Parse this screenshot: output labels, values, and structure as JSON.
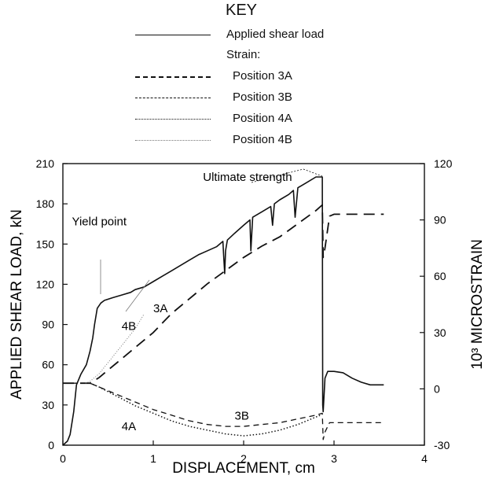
{
  "key": {
    "title": "KEY",
    "strain_heading": "Strain:",
    "entries": [
      {
        "label": "Applied shear load",
        "style": "solid"
      },
      {
        "label": "Position 3A",
        "style": "long-dash"
      },
      {
        "label": "Position 3B",
        "style": "dash"
      },
      {
        "label": "Position 4A",
        "style": "dotted"
      },
      {
        "label": "Position 4B",
        "style": "thin-dotted"
      }
    ]
  },
  "chart_data": {
    "type": "line",
    "xlabel": "DISPLACEMENT, cm",
    "ylabel_left": "APPLIED SHEAR LOAD, kN",
    "ylabel_right": "10³ MICROSTRAIN",
    "xlim": [
      0,
      4
    ],
    "ylim_left": [
      0,
      210
    ],
    "ylim_right": [
      -30,
      120
    ],
    "x_ticks": [
      "0",
      "1",
      "2",
      "3",
      "4"
    ],
    "y_ticks_left": [
      "0",
      "30",
      "60",
      "90",
      "120",
      "150",
      "180",
      "210"
    ],
    "y_ticks_right": [
      "-30",
      "0",
      "30",
      "60",
      "90",
      "120"
    ],
    "grid": false,
    "annotations": [
      {
        "text": "Ultimate strength",
        "x": 1.55,
        "y_left": 197
      },
      {
        "text": "Yield point",
        "x": 0.1,
        "y_left": 164
      },
      {
        "text": "3A",
        "x": 1.0,
        "y_left": 99
      },
      {
        "text": "4B",
        "x": 0.65,
        "y_left": 86
      },
      {
        "text": "3B",
        "x": 1.9,
        "y_left": 19
      },
      {
        "text": "4A",
        "x": 0.65,
        "y_left": 11
      }
    ],
    "series": [
      {
        "name": "Applied shear load",
        "axis": "left",
        "style": "solid",
        "x": [
          0,
          0.05,
          0.08,
          0.12,
          0.15,
          0.2,
          0.26,
          0.3,
          0.33,
          0.35,
          0.38,
          0.42,
          0.46,
          0.55,
          0.65,
          0.75,
          0.8,
          0.9,
          1.0,
          1.1,
          1.2,
          1.3,
          1.4,
          1.5,
          1.6,
          1.7,
          1.77,
          1.78,
          1.79,
          1.8,
          1.82,
          1.9,
          2.0,
          2.07,
          2.08,
          2.1,
          2.2,
          2.3,
          2.32,
          2.34,
          2.4,
          2.5,
          2.55,
          2.57,
          2.6,
          2.7,
          2.8,
          2.87,
          2.875,
          2.88,
          2.9,
          2.93,
          3.0,
          3.1,
          3.2,
          3.3,
          3.4,
          3.55
        ],
        "y": [
          0,
          3,
          8,
          25,
          45,
          53,
          60,
          70,
          80,
          90,
          102,
          106,
          108,
          110,
          112,
          114,
          116,
          118,
          122,
          126,
          130,
          134,
          138,
          142,
          145,
          148,
          152,
          140,
          128,
          145,
          153,
          158,
          164,
          168,
          145,
          170,
          174,
          178,
          164,
          180,
          183,
          187,
          190,
          170,
          192,
          196,
          200,
          200,
          30,
          25,
          50,
          55,
          55,
          54,
          50,
          47,
          45,
          45
        ]
      },
      {
        "name": "Position 3A",
        "axis": "right",
        "style": "long-dash",
        "x": [
          0,
          0.2,
          0.3,
          0.4,
          0.5,
          0.6,
          0.7,
          0.8,
          0.9,
          1.0,
          1.2,
          1.4,
          1.6,
          1.8,
          2.0,
          2.2,
          2.4,
          2.6,
          2.8,
          2.87,
          2.88,
          2.9,
          2.95,
          3.0,
          3.2,
          3.4,
          3.55
        ],
        "y": [
          3,
          3,
          3,
          6,
          10,
          14,
          18,
          22,
          26,
          30,
          40,
          48,
          56,
          63,
          70,
          76,
          81,
          88,
          95,
          98,
          70,
          75,
          92,
          93,
          93,
          93,
          93
        ]
      },
      {
        "name": "Position 3B",
        "axis": "right",
        "style": "dash",
        "x": [
          0,
          0.2,
          0.3,
          0.4,
          0.6,
          0.8,
          1.0,
          1.2,
          1.4,
          1.6,
          1.8,
          2.0,
          2.2,
          2.4,
          2.6,
          2.8,
          2.87,
          2.88,
          2.9,
          2.95,
          3.0,
          3.2,
          3.4,
          3.55
        ],
        "y": [
          3,
          3,
          3,
          1,
          -3,
          -7,
          -11,
          -14,
          -17,
          -19,
          -20,
          -20,
          -19,
          -18,
          -16,
          -14,
          -13,
          -27,
          -23,
          -18,
          -18,
          -18,
          -18,
          -18
        ]
      },
      {
        "name": "Position 4A",
        "axis": "right",
        "style": "dotted",
        "x": [
          0.3,
          0.4,
          0.6,
          0.8,
          1.0,
          1.2,
          1.4,
          1.6,
          1.8,
          2.0,
          2.2,
          2.4,
          2.6,
          2.8,
          2.85
        ],
        "y": [
          3,
          1,
          -4,
          -9,
          -13,
          -17,
          -20,
          -22,
          -24,
          -25,
          -24,
          -22,
          -19,
          -15,
          -14
        ]
      },
      {
        "name": "Position 4B",
        "axis": "right",
        "style": "thin-dotted",
        "x": [
          0.25,
          0.3,
          0.4,
          0.5,
          0.6,
          0.7,
          0.8,
          0.9
        ],
        "y": [
          3,
          4,
          8,
          14,
          20,
          26,
          32,
          40
        ]
      }
    ]
  }
}
